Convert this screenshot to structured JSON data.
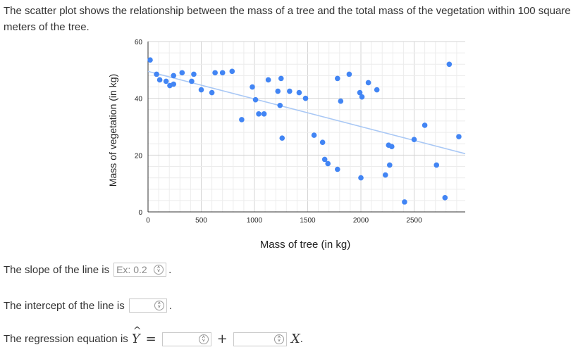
{
  "intro_text": "The scatter plot shows the relationship between the mass of a tree and the total mass of the vegetation within 100 square meters of the tree.",
  "colors": {
    "point": "#4285f4",
    "trendline": "#a9c8f5",
    "grid": "#e0e0e0",
    "axis": "#333333"
  },
  "chart_data": {
    "type": "scatter",
    "title": "",
    "xlabel": "Mass of tree (in kg)",
    "ylabel": "Mass of vegetation (in kg)",
    "xlim": [
      0,
      2980
    ],
    "ylim": [
      0,
      60
    ],
    "xticks": [
      0,
      500,
      1000,
      1500,
      2000,
      2500
    ],
    "yticks": [
      0,
      20,
      40,
      60
    ],
    "grid": true,
    "trendline": {
      "x": [
        0,
        2980
      ],
      "y": [
        49.5,
        20.5
      ]
    },
    "points": [
      {
        "x": 20,
        "y": 53.5
      },
      {
        "x": 80,
        "y": 48.5
      },
      {
        "x": 110,
        "y": 46.5
      },
      {
        "x": 170,
        "y": 46
      },
      {
        "x": 205,
        "y": 44.5
      },
      {
        "x": 240,
        "y": 45
      },
      {
        "x": 240,
        "y": 48
      },
      {
        "x": 320,
        "y": 49
      },
      {
        "x": 410,
        "y": 46
      },
      {
        "x": 430,
        "y": 48.5
      },
      {
        "x": 500,
        "y": 43
      },
      {
        "x": 600,
        "y": 42
      },
      {
        "x": 630,
        "y": 49
      },
      {
        "x": 700,
        "y": 49
      },
      {
        "x": 790,
        "y": 49.5
      },
      {
        "x": 880,
        "y": 32.5
      },
      {
        "x": 980,
        "y": 44
      },
      {
        "x": 1010,
        "y": 39.5
      },
      {
        "x": 1040,
        "y": 34.5
      },
      {
        "x": 1090,
        "y": 34.5
      },
      {
        "x": 1130,
        "y": 46.5
      },
      {
        "x": 1220,
        "y": 42.5
      },
      {
        "x": 1250,
        "y": 47
      },
      {
        "x": 1240,
        "y": 37.5
      },
      {
        "x": 1260,
        "y": 26
      },
      {
        "x": 1330,
        "y": 42.5
      },
      {
        "x": 1420,
        "y": 42
      },
      {
        "x": 1480,
        "y": 40
      },
      {
        "x": 1560,
        "y": 27
      },
      {
        "x": 1640,
        "y": 24.5
      },
      {
        "x": 1660,
        "y": 18.5
      },
      {
        "x": 1690,
        "y": 17
      },
      {
        "x": 1780,
        "y": 47
      },
      {
        "x": 1780,
        "y": 15
      },
      {
        "x": 1810,
        "y": 39
      },
      {
        "x": 1890,
        "y": 48.5
      },
      {
        "x": 1990,
        "y": 42
      },
      {
        "x": 2010,
        "y": 40.5
      },
      {
        "x": 2000,
        "y": 12
      },
      {
        "x": 2070,
        "y": 45.5
      },
      {
        "x": 2150,
        "y": 43
      },
      {
        "x": 2230,
        "y": 13
      },
      {
        "x": 2260,
        "y": 23.5
      },
      {
        "x": 2290,
        "y": 23
      },
      {
        "x": 2270,
        "y": 16.5
      },
      {
        "x": 2410,
        "y": 3.5
      },
      {
        "x": 2500,
        "y": 25.5
      },
      {
        "x": 2600,
        "y": 30.5
      },
      {
        "x": 2710,
        "y": 16.5
      },
      {
        "x": 2790,
        "y": 5
      },
      {
        "x": 2830,
        "y": 52
      },
      {
        "x": 2920,
        "y": 26.5
      }
    ]
  },
  "q_slope": {
    "label": "The slope of the line is",
    "placeholder": "Ex: 0.2",
    "after": "."
  },
  "q_intercept": {
    "label": "The intercept of the line is",
    "after": "."
  },
  "q_equation": {
    "label": "The regression equation is",
    "yhat": "Y",
    "hat": "^",
    "equals": "=",
    "plus": "+",
    "x": "X",
    "after": "."
  },
  "spinner_glyph_up": "˄",
  "spinner_glyph_down": "˅"
}
